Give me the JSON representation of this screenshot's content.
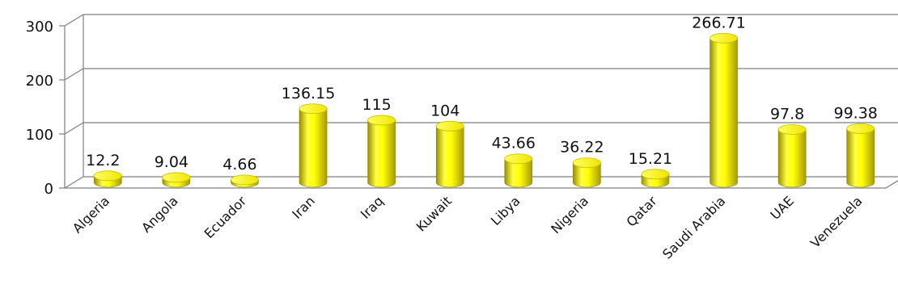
{
  "chart_data": {
    "type": "bar",
    "style": "3d-cylinder",
    "categories": [
      "Algeria",
      "Angola",
      "Ecuador",
      "Iran",
      "Iraq",
      "Kuwait",
      "Libya",
      "Nigeria",
      "Qatar",
      "Saudi Arabia",
      "UAE",
      "Venezuela"
    ],
    "values": [
      12.2,
      9.04,
      4.66,
      136.15,
      115,
      104,
      43.66,
      36.22,
      15.21,
      266.71,
      97.8,
      99.38
    ],
    "data_labels": [
      "12.2",
      "9.04",
      "4.66",
      "136.15",
      "115",
      "104",
      "43.66",
      "36.22",
      "15.21",
      "266.71",
      "97.8",
      "99.38"
    ],
    "y_ticks": [
      0,
      100,
      200,
      300
    ],
    "ylim": [
      0,
      300
    ],
    "grid": true,
    "legend": "none",
    "bar_color": "#ffff00",
    "bar_shade_color": "#b8a800",
    "title": "",
    "xlabel": "",
    "ylabel": ""
  }
}
